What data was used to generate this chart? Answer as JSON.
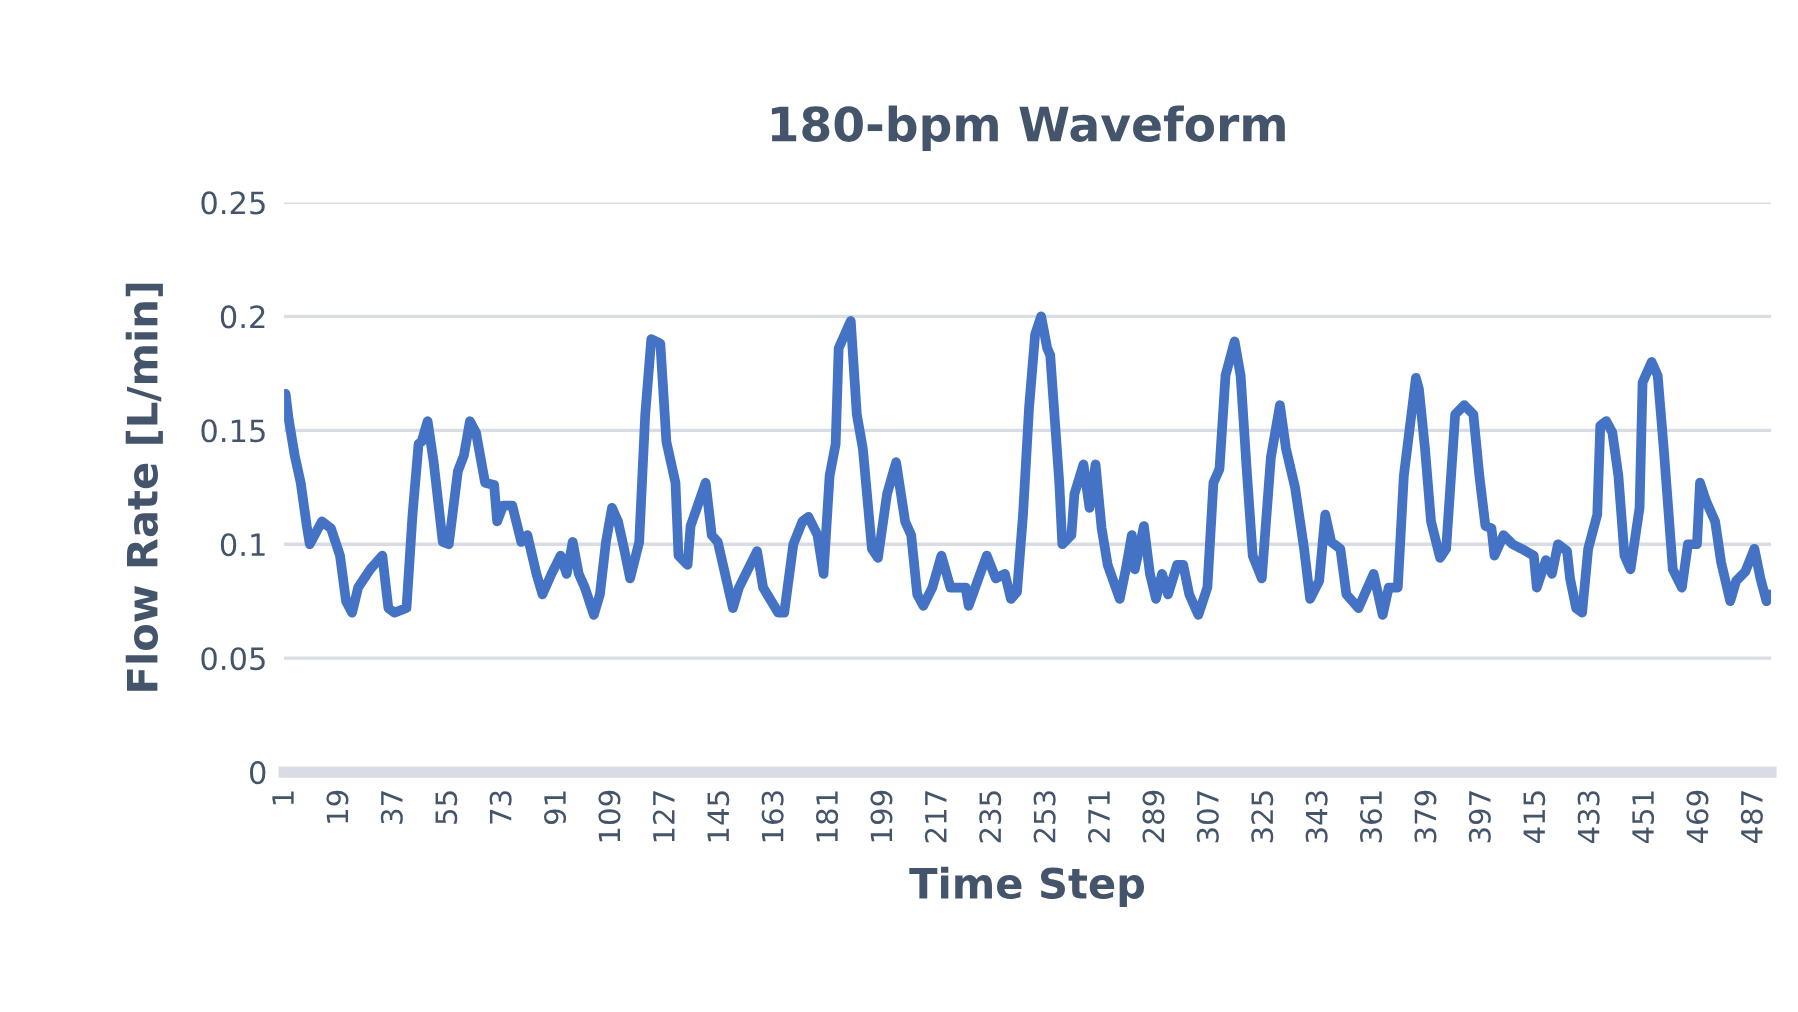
{
  "chart_data": {
    "type": "line",
    "title": "180-bpm Waveform",
    "xlabel": "Time Step",
    "ylabel": "Flow Rate [L/min]",
    "xlim": [
      0.5,
      492.5
    ],
    "xticks": [
      1,
      19,
      37,
      55,
      73,
      91,
      109,
      127,
      145,
      163,
      181,
      199,
      217,
      235,
      253,
      271,
      289,
      307,
      325,
      343,
      361,
      379,
      397,
      415,
      433,
      451,
      469,
      487
    ],
    "ylim": [
      0,
      0.25
    ],
    "yticks": [
      0,
      0.05,
      0.1,
      0.15,
      0.2,
      0.25
    ],
    "grid": "y",
    "legend": false,
    "marker": "none",
    "line_style": "solid",
    "series": [
      {
        "color": "#4472c4",
        "x": [
          1,
          2,
          4,
          6,
          8,
          9,
          13,
          16,
          19,
          21,
          23,
          25,
          29,
          33,
          35,
          37,
          41,
          43,
          45,
          46,
          48,
          50,
          53,
          55,
          58,
          60,
          62,
          64,
          67,
          70,
          71,
          73,
          76,
          79,
          81,
          84,
          86,
          89,
          92,
          94,
          96,
          98,
          100,
          103,
          105,
          107,
          109,
          111,
          113,
          115,
          118,
          120,
          122,
          125,
          127,
          130,
          131,
          134,
          135,
          140,
          142,
          144,
          149,
          151,
          157,
          159,
          164,
          166,
          169,
          172,
          174,
          177,
          179,
          181,
          183,
          184,
          188,
          190,
          192,
          195,
          197,
          200,
          203,
          206,
          208,
          210,
          212,
          215,
          218,
          221,
          226,
          227,
          230,
          233,
          236,
          239,
          241,
          243,
          245,
          247,
          249,
          251,
          253,
          254,
          257,
          258,
          261,
          262,
          265,
          267,
          269,
          271,
          273,
          277,
          279,
          281,
          282,
          285,
          287,
          289,
          291,
          293,
          296,
          298,
          300,
          303,
          306,
          308,
          310,
          312,
          315,
          317,
          319,
          321,
          324,
          327,
          330,
          332,
          335,
          338,
          340,
          343,
          345,
          347,
          350,
          352,
          356,
          358,
          361,
          364,
          366,
          369,
          371,
          375,
          376,
          378,
          380,
          383,
          385,
          388,
          391,
          394,
          396,
          398,
          400,
          401,
          404,
          407,
          410,
          414,
          415,
          418,
          420,
          422,
          425,
          426,
          428,
          430,
          432,
          435,
          436,
          438,
          440,
          442,
          444,
          446,
          449,
          450,
          453,
          455,
          457,
          460,
          463,
          465,
          468,
          469,
          471,
          474,
          476,
          479,
          481,
          484,
          487,
          489,
          491,
          492
        ],
        "values": [
          0.166,
          0.155,
          0.139,
          0.127,
          0.108,
          0.1,
          0.11,
          0.107,
          0.095,
          0.075,
          0.07,
          0.081,
          0.089,
          0.095,
          0.072,
          0.07,
          0.072,
          0.113,
          0.144,
          0.145,
          0.154,
          0.136,
          0.101,
          0.1,
          0.132,
          0.139,
          0.154,
          0.149,
          0.127,
          0.126,
          0.11,
          0.117,
          0.117,
          0.101,
          0.104,
          0.087,
          0.078,
          0.087,
          0.095,
          0.087,
          0.101,
          0.087,
          0.081,
          0.069,
          0.078,
          0.101,
          0.116,
          0.11,
          0.098,
          0.085,
          0.101,
          0.157,
          0.19,
          0.188,
          0.145,
          0.127,
          0.095,
          0.091,
          0.108,
          0.127,
          0.104,
          0.101,
          0.072,
          0.081,
          0.097,
          0.081,
          0.07,
          0.07,
          0.1,
          0.11,
          0.112,
          0.104,
          0.087,
          0.13,
          0.144,
          0.186,
          0.198,
          0.157,
          0.142,
          0.098,
          0.094,
          0.122,
          0.136,
          0.11,
          0.104,
          0.078,
          0.073,
          0.081,
          0.095,
          0.081,
          0.081,
          0.073,
          0.084,
          0.095,
          0.085,
          0.087,
          0.076,
          0.079,
          0.113,
          0.16,
          0.192,
          0.2,
          0.186,
          0.183,
          0.127,
          0.1,
          0.104,
          0.122,
          0.135,
          0.116,
          0.135,
          0.107,
          0.091,
          0.076,
          0.089,
          0.104,
          0.089,
          0.108,
          0.087,
          0.076,
          0.087,
          0.078,
          0.091,
          0.091,
          0.078,
          0.069,
          0.081,
          0.127,
          0.133,
          0.174,
          0.189,
          0.174,
          0.133,
          0.095,
          0.085,
          0.138,
          0.161,
          0.142,
          0.125,
          0.098,
          0.076,
          0.084,
          0.113,
          0.101,
          0.098,
          0.078,
          0.072,
          0.078,
          0.087,
          0.069,
          0.081,
          0.081,
          0.13,
          0.173,
          0.168,
          0.142,
          0.11,
          0.094,
          0.098,
          0.157,
          0.161,
          0.157,
          0.13,
          0.108,
          0.107,
          0.095,
          0.104,
          0.1,
          0.098,
          0.095,
          0.081,
          0.093,
          0.087,
          0.1,
          0.097,
          0.085,
          0.072,
          0.07,
          0.098,
          0.113,
          0.152,
          0.154,
          0.149,
          0.13,
          0.095,
          0.089,
          0.116,
          0.171,
          0.18,
          0.174,
          0.142,
          0.089,
          0.081,
          0.1,
          0.1,
          0.127,
          0.119,
          0.11,
          0.092,
          0.075,
          0.084,
          0.088,
          0.098,
          0.085,
          0.075,
          0.078
        ]
      }
    ]
  }
}
